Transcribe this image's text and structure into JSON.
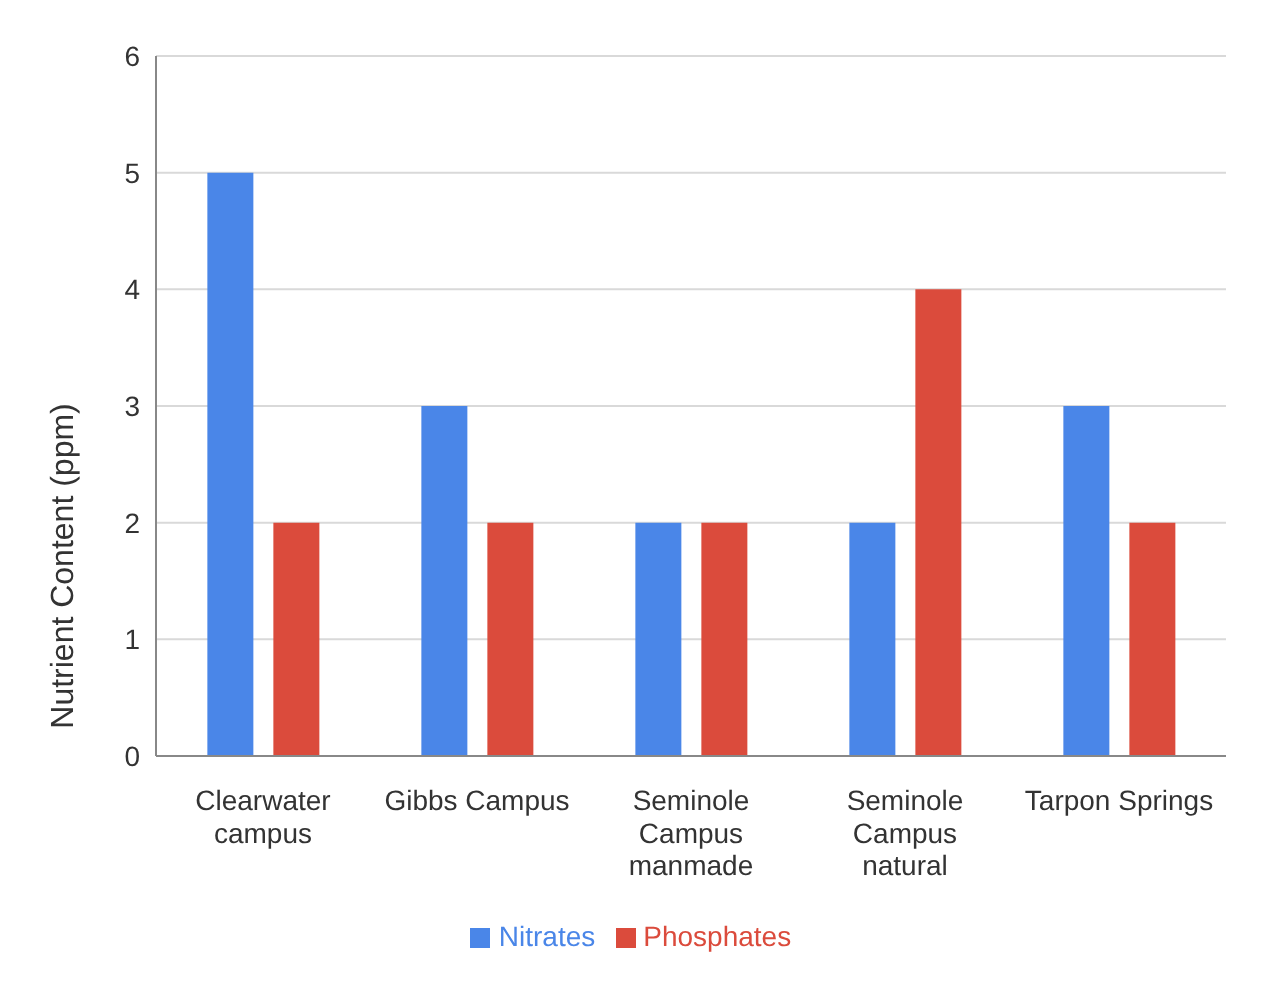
{
  "chart_data": {
    "type": "bar",
    "ylabel": "Nutrient Content (ppm)",
    "categories": [
      "Clearwater campus",
      "Gibbs Campus",
      "Seminole Campus manmade",
      "Seminole Campus natural",
      "Tarpon Springs"
    ],
    "series": [
      {
        "name": "Nitrates",
        "color": "#4a86e8",
        "values": [
          5,
          3,
          2,
          2,
          3
        ]
      },
      {
        "name": "Phosphates",
        "color": "#db4b3c",
        "values": [
          2,
          2,
          2,
          4,
          2
        ]
      }
    ],
    "ylim": [
      0,
      6
    ],
    "yticks": [
      0,
      1,
      2,
      3,
      4,
      5,
      6
    ],
    "grid": "y",
    "legend": "bottom"
  }
}
